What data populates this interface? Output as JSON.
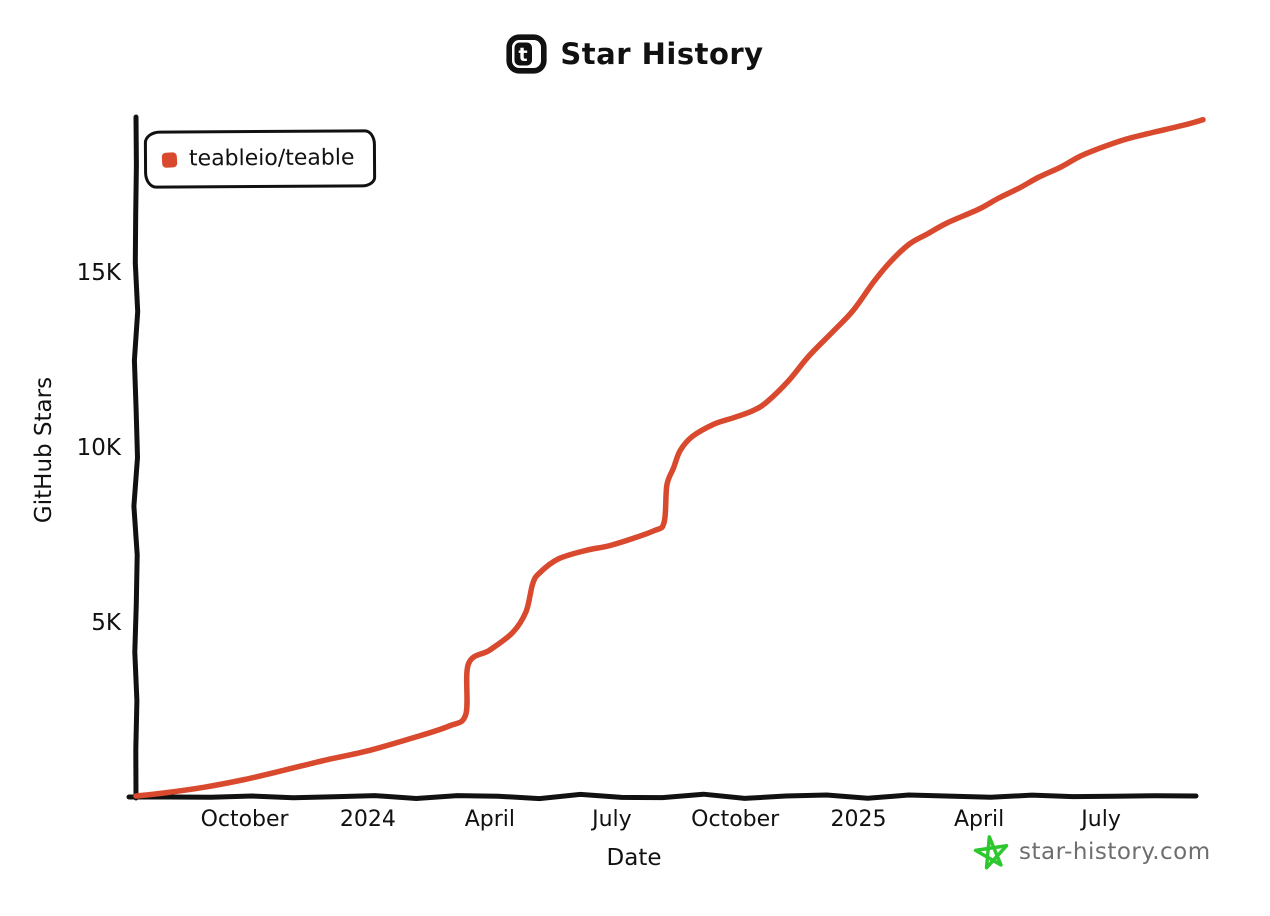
{
  "page": {
    "background": "#ffffff"
  },
  "header": {
    "title": "Star History",
    "logo_icon": "teable-logo-icon",
    "logo_letter": "t"
  },
  "legend": {
    "items": [
      {
        "label": "teableio/teable",
        "color": "#d9492e"
      }
    ]
  },
  "footer": {
    "site": "star-history.com",
    "star_icon_color": "#2dc82d",
    "text_color": "#6e6e6e"
  },
  "colors": {
    "line": "#d9492e",
    "axis": "#111111",
    "background": "#ffffff"
  },
  "chart_data": {
    "type": "line",
    "title": "Star History",
    "xlabel": "Date",
    "ylabel": "GitHub Stars",
    "grid": false,
    "legend_position": "top-left",
    "x_range": [
      "2023-07-12",
      "2025-09-15"
    ],
    "ylim": [
      0,
      19800
    ],
    "x_ticks": [
      {
        "label": "October",
        "date": "2023-10-01"
      },
      {
        "label": "2024",
        "date": "2024-01-01"
      },
      {
        "label": "April",
        "date": "2024-04-01"
      },
      {
        "label": "July",
        "date": "2024-07-01"
      },
      {
        "label": "October",
        "date": "2024-10-01"
      },
      {
        "label": "2025",
        "date": "2025-01-01"
      },
      {
        "label": "April",
        "date": "2025-04-01"
      },
      {
        "label": "July",
        "date": "2025-07-01"
      }
    ],
    "y_ticks": [
      {
        "label": "5K",
        "value": 5000
      },
      {
        "label": "10K",
        "value": 10000
      },
      {
        "label": "15K",
        "value": 15000
      }
    ],
    "series": [
      {
        "name": "teableio/teable",
        "color": "#d9492e",
        "points": [
          [
            "2023-07-12",
            30
          ],
          [
            "2023-08-01",
            110
          ],
          [
            "2023-09-01",
            280
          ],
          [
            "2023-10-01",
            500
          ],
          [
            "2023-11-01",
            780
          ],
          [
            "2023-12-01",
            1060
          ],
          [
            "2024-01-01",
            1320
          ],
          [
            "2024-02-01",
            1660
          ],
          [
            "2024-03-01",
            2020
          ],
          [
            "2024-03-14",
            2360
          ],
          [
            "2024-03-16",
            3800
          ],
          [
            "2024-04-01",
            4200
          ],
          [
            "2024-04-18",
            4700
          ],
          [
            "2024-04-28",
            5300
          ],
          [
            "2024-05-03",
            6100
          ],
          [
            "2024-05-08",
            6400
          ],
          [
            "2024-05-22",
            6800
          ],
          [
            "2024-06-12",
            7050
          ],
          [
            "2024-07-01",
            7200
          ],
          [
            "2024-08-01",
            7600
          ],
          [
            "2024-08-09",
            7850
          ],
          [
            "2024-08-11",
            8900
          ],
          [
            "2024-08-16",
            9400
          ],
          [
            "2024-08-21",
            9900
          ],
          [
            "2024-08-30",
            10300
          ],
          [
            "2024-09-15",
            10650
          ],
          [
            "2024-10-01",
            10850
          ],
          [
            "2024-10-15",
            11050
          ],
          [
            "2024-10-25",
            11300
          ],
          [
            "2024-11-10",
            11900
          ],
          [
            "2024-11-25",
            12600
          ],
          [
            "2024-12-13",
            13300
          ],
          [
            "2024-12-28",
            13900
          ],
          [
            "2025-01-12",
            14700
          ],
          [
            "2025-01-25",
            15300
          ],
          [
            "2025-02-08",
            15800
          ],
          [
            "2025-02-22",
            16100
          ],
          [
            "2025-03-08",
            16400
          ],
          [
            "2025-04-01",
            16800
          ],
          [
            "2025-04-15",
            17100
          ],
          [
            "2025-05-01",
            17400
          ],
          [
            "2025-05-15",
            17700
          ],
          [
            "2025-06-01",
            18000
          ],
          [
            "2025-06-15",
            18300
          ],
          [
            "2025-07-01",
            18550
          ],
          [
            "2025-07-20",
            18800
          ],
          [
            "2025-08-10",
            19000
          ],
          [
            "2025-09-01",
            19200
          ],
          [
            "2025-09-15",
            19350
          ]
        ]
      }
    ]
  }
}
